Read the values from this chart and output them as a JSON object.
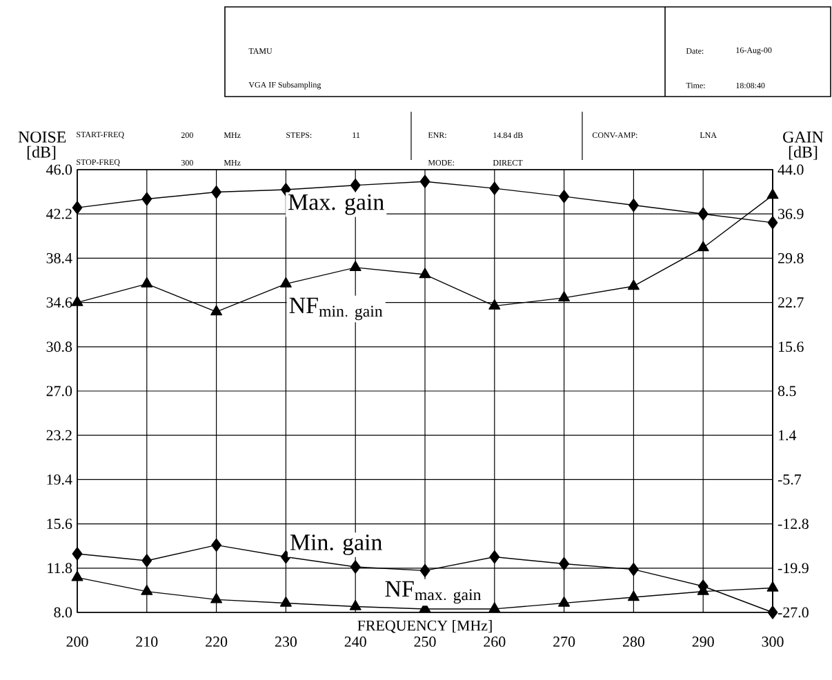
{
  "chart_data": {
    "type": "line",
    "xlabel": "FREQUENCY [MHz]",
    "ylabel": "NOISE [dB]",
    "y2label": "GAIN [dB]",
    "x": [
      200,
      210,
      220,
      230,
      240,
      250,
      260,
      270,
      280,
      290,
      300
    ],
    "xlim": [
      200,
      300
    ],
    "xticks": [
      200,
      210,
      220,
      230,
      240,
      250,
      260,
      270,
      280,
      290,
      300
    ],
    "ylim": [
      8,
      46
    ],
    "yticks": [
      {
        "value": 8,
        "label": "8.0"
      },
      11.8,
      15.6,
      19.4,
      23.2,
      {
        "value": 27,
        "label": "27.0"
      },
      30.8,
      34.6,
      38.4,
      42.2,
      {
        "value": 46,
        "label": "46.0"
      }
    ],
    "y2lim": [
      -27,
      44
    ],
    "y2ticks": [
      {
        "value": -27,
        "label": "-27.0"
      },
      -19.9,
      -12.8,
      -5.7,
      1.4,
      8.5,
      15.6,
      22.7,
      29.8,
      36.9,
      {
        "value": 44,
        "label": "44.0"
      }
    ],
    "grid": true,
    "line_style": "solid",
    "series": [
      {
        "name": "Max. gain",
        "color": "#000000",
        "axis": "y2",
        "marker": "diamond",
        "values": [
          37.9,
          39.3,
          40.4,
          40.8,
          41.5,
          42.1,
          41.0,
          39.7,
          38.3,
          36.9,
          35.5
        ]
      },
      {
        "name": "\\mathrm{NF}_{\\mathrm{min.\\ gain}}",
        "color": "#000000",
        "marker": "triangle",
        "values": [
          34.6,
          36.2,
          33.8,
          36.2,
          37.6,
          37.0,
          34.3,
          35.0,
          36.0,
          39.3,
          43.8
        ]
      },
      {
        "name": "Min. gain",
        "color": "#000000",
        "axis": "y2",
        "marker": "diamond",
        "values": [
          -17.6,
          -18.7,
          -16.2,
          -18.1,
          -19.7,
          -20.3,
          -18.1,
          -19.2,
          -20.1,
          -22.8,
          -27.0
        ]
      },
      {
        "name": "\\mathrm{NF}_{\\mathrm{max.\\ gain}}",
        "color": "#000000",
        "marker": "triangle",
        "values": [
          11.0,
          9.8,
          9.1,
          8.8,
          8.5,
          8.3,
          8.3,
          8.8,
          9.3,
          9.8,
          10.1
        ]
      }
    ],
    "annotations": [
      "TAMU",
      "VGA IF Subsampling",
      "Date:",
      "16-Aug-00",
      "Time:",
      "18:08:40",
      "START-FREQ",
      "200",
      "MHz",
      "STEPS:",
      "11",
      "ENR:",
      "14.84 dB",
      "CONV-AMP:",
      "LNA",
      "STOP-FREQ",
      "300",
      "MHz",
      "MODE:",
      "DIRECT"
    ]
  }
}
